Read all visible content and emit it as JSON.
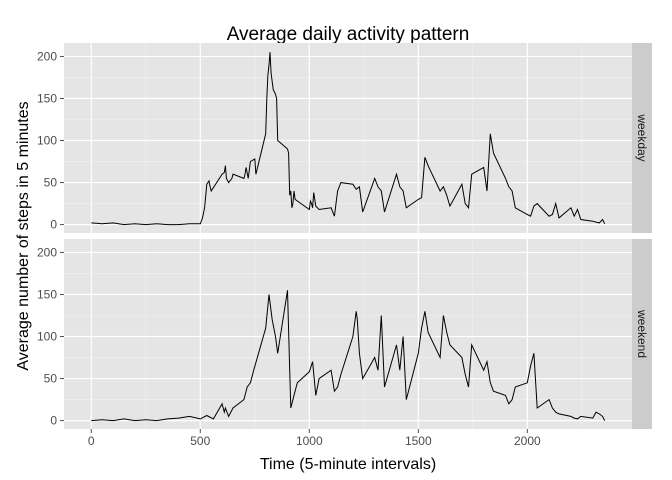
{
  "chart_data": {
    "type": "line",
    "title": "Average daily activity pattern",
    "xlabel": "Time (5-minute intervals)",
    "ylabel": "Average number of steps in 5 minutes",
    "xlim": [
      -125,
      2480
    ],
    "ylim": [
      -10,
      216
    ],
    "x_ticks": [
      0,
      500,
      1000,
      1500,
      2000
    ],
    "y_ticks": [
      0,
      50,
      100,
      150,
      200
    ],
    "grid": true,
    "legend": "none",
    "colors": {
      "panel_bg": "#e5e5e5",
      "grid_major": "#ffffff",
      "strip_bg": "#cccccc",
      "line": "#000000"
    },
    "panels": [
      {
        "name": "weekday",
        "x": [
          0,
          50,
          100,
          150,
          200,
          250,
          300,
          350,
          400,
          450,
          500,
          510,
          520,
          530,
          540,
          545,
          550,
          600,
          610,
          615,
          620,
          630,
          645,
          650,
          700,
          705,
          710,
          720,
          730,
          750,
          755,
          800,
          805,
          810,
          815,
          820,
          825,
          830,
          835,
          840,
          845,
          850,
          855,
          900,
          905,
          910,
          915,
          920,
          925,
          930,
          935,
          1000,
          1005,
          1010,
          1015,
          1020,
          1030,
          1045,
          1100,
          1115,
          1130,
          1145,
          1200,
          1215,
          1230,
          1245,
          1300,
          1315,
          1330,
          1345,
          1400,
          1415,
          1430,
          1445,
          1500,
          1515,
          1530,
          1545,
          1600,
          1615,
          1630,
          1645,
          1700,
          1715,
          1730,
          1745,
          1800,
          1815,
          1830,
          1835,
          1845,
          1900,
          1915,
          1930,
          1945,
          2000,
          2015,
          2030,
          2045,
          2100,
          2115,
          2130,
          2145,
          2200,
          2215,
          2230,
          2245,
          2300,
          2315,
          2330,
          2345,
          2355
        ],
        "y": [
          2,
          1,
          2,
          0,
          1,
          0,
          1,
          0,
          0,
          1,
          1,
          8,
          20,
          48,
          52,
          45,
          40,
          60,
          62,
          70,
          55,
          50,
          55,
          60,
          55,
          60,
          68,
          55,
          75,
          78,
          60,
          108,
          150,
          178,
          190,
          205,
          180,
          170,
          160,
          158,
          155,
          150,
          100,
          90,
          85,
          35,
          40,
          20,
          25,
          40,
          30,
          18,
          28,
          25,
          20,
          38,
          22,
          18,
          20,
          10,
          40,
          50,
          48,
          42,
          45,
          15,
          55,
          45,
          40,
          15,
          60,
          45,
          40,
          20,
          30,
          32,
          80,
          70,
          40,
          45,
          35,
          22,
          48,
          25,
          20,
          60,
          68,
          40,
          108,
          100,
          85,
          55,
          45,
          40,
          20,
          12,
          10,
          22,
          25,
          10,
          12,
          25,
          8,
          20,
          10,
          18,
          6,
          4,
          3,
          2,
          6,
          1
        ],
        "strip": "weekday"
      },
      {
        "name": "weekend",
        "x": [
          0,
          50,
          100,
          150,
          200,
          250,
          300,
          350,
          400,
          450,
          500,
          530,
          560,
          600,
          610,
          615,
          630,
          650,
          700,
          715,
          730,
          745,
          800,
          815,
          830,
          845,
          855,
          900,
          910,
          915,
          920,
          930,
          945,
          1000,
          1015,
          1030,
          1045,
          1100,
          1115,
          1130,
          1145,
          1200,
          1215,
          1220,
          1230,
          1245,
          1300,
          1315,
          1330,
          1345,
          1400,
          1415,
          1430,
          1445,
          1500,
          1515,
          1530,
          1545,
          1600,
          1615,
          1630,
          1645,
          1700,
          1715,
          1730,
          1745,
          1800,
          1815,
          1830,
          1845,
          1900,
          1915,
          1930,
          1945,
          2000,
          2015,
          2030,
          2045,
          2100,
          2115,
          2130,
          2145,
          2200,
          2215,
          2230,
          2245,
          2300,
          2315,
          2330,
          2345,
          2355
        ],
        "y": [
          0,
          1,
          0,
          2,
          0,
          1,
          0,
          2,
          3,
          5,
          2,
          6,
          2,
          20,
          10,
          15,
          5,
          15,
          25,
          40,
          45,
          60,
          110,
          150,
          120,
          100,
          80,
          155,
          60,
          15,
          20,
          30,
          45,
          58,
          70,
          30,
          50,
          60,
          35,
          40,
          55,
          100,
          130,
          120,
          80,
          50,
          75,
          60,
          125,
          40,
          90,
          60,
          100,
          25,
          80,
          110,
          130,
          105,
          75,
          125,
          105,
          90,
          75,
          55,
          40,
          90,
          60,
          70,
          45,
          35,
          30,
          20,
          25,
          40,
          45,
          65,
          80,
          15,
          25,
          15,
          10,
          8,
          5,
          3,
          2,
          5,
          3,
          10,
          8,
          5,
          0
        ],
        "strip": "weekend"
      }
    ]
  }
}
